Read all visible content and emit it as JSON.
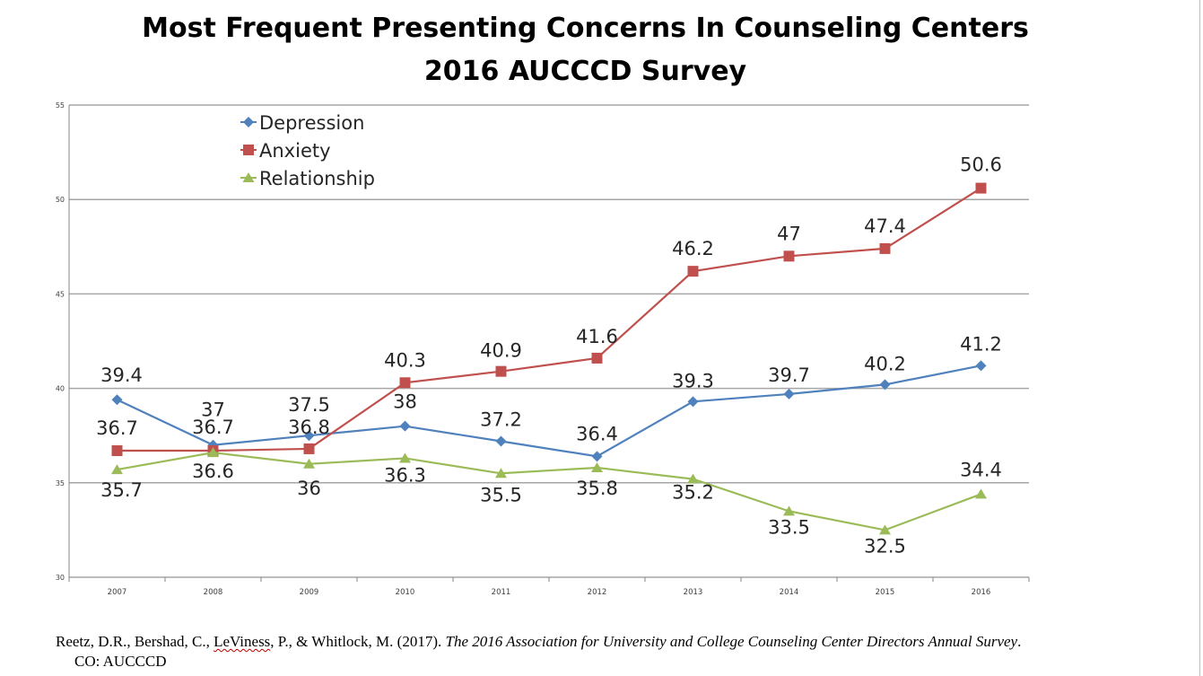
{
  "title_line1": "Most Frequent Presenting Concerns In Counseling Centers",
  "title_line2": "2016 AUCCCD Survey",
  "citation": {
    "authors_pre": "Reetz, D.R., Bershad, C., ",
    "authors_flagged": "LeViness",
    "authors_post": ", P., & Whitlock, M. (2017). ",
    "work_title": "The 2016 Association for University and College Counseling Center Directors Annual Survey",
    "after_title": ".",
    "line2": "CO: AUCCCD"
  },
  "colors": {
    "Depression": "#4f81bd",
    "Anxiety": "#c0504d",
    "Relationship": "#9bbb59",
    "grid": "#a6a6a6",
    "axis": "#868686"
  },
  "chart_data": {
    "type": "line",
    "categories": [
      "2007",
      "2008",
      "2009",
      "2010",
      "2011",
      "2012",
      "2013",
      "2014",
      "2015",
      "2016"
    ],
    "series": [
      {
        "name": "Depression",
        "marker": "diamond",
        "values": [
          39.4,
          37,
          37.5,
          38,
          37.2,
          36.4,
          39.3,
          39.7,
          40.2,
          41.2
        ]
      },
      {
        "name": "Anxiety",
        "marker": "square",
        "values": [
          36.7,
          36.7,
          36.8,
          40.3,
          40.9,
          41.6,
          46.2,
          47,
          47.4,
          50.6
        ]
      },
      {
        "name": "Relationship",
        "marker": "triangle",
        "values": [
          35.7,
          36.6,
          36,
          36.3,
          35.5,
          35.8,
          35.2,
          33.5,
          32.5,
          34.4
        ]
      }
    ],
    "ylim": [
      30,
      55
    ],
    "yticks": [
      "30",
      "35",
      "40",
      "45",
      "50",
      "55"
    ],
    "grid": true,
    "legend": "top-left"
  }
}
